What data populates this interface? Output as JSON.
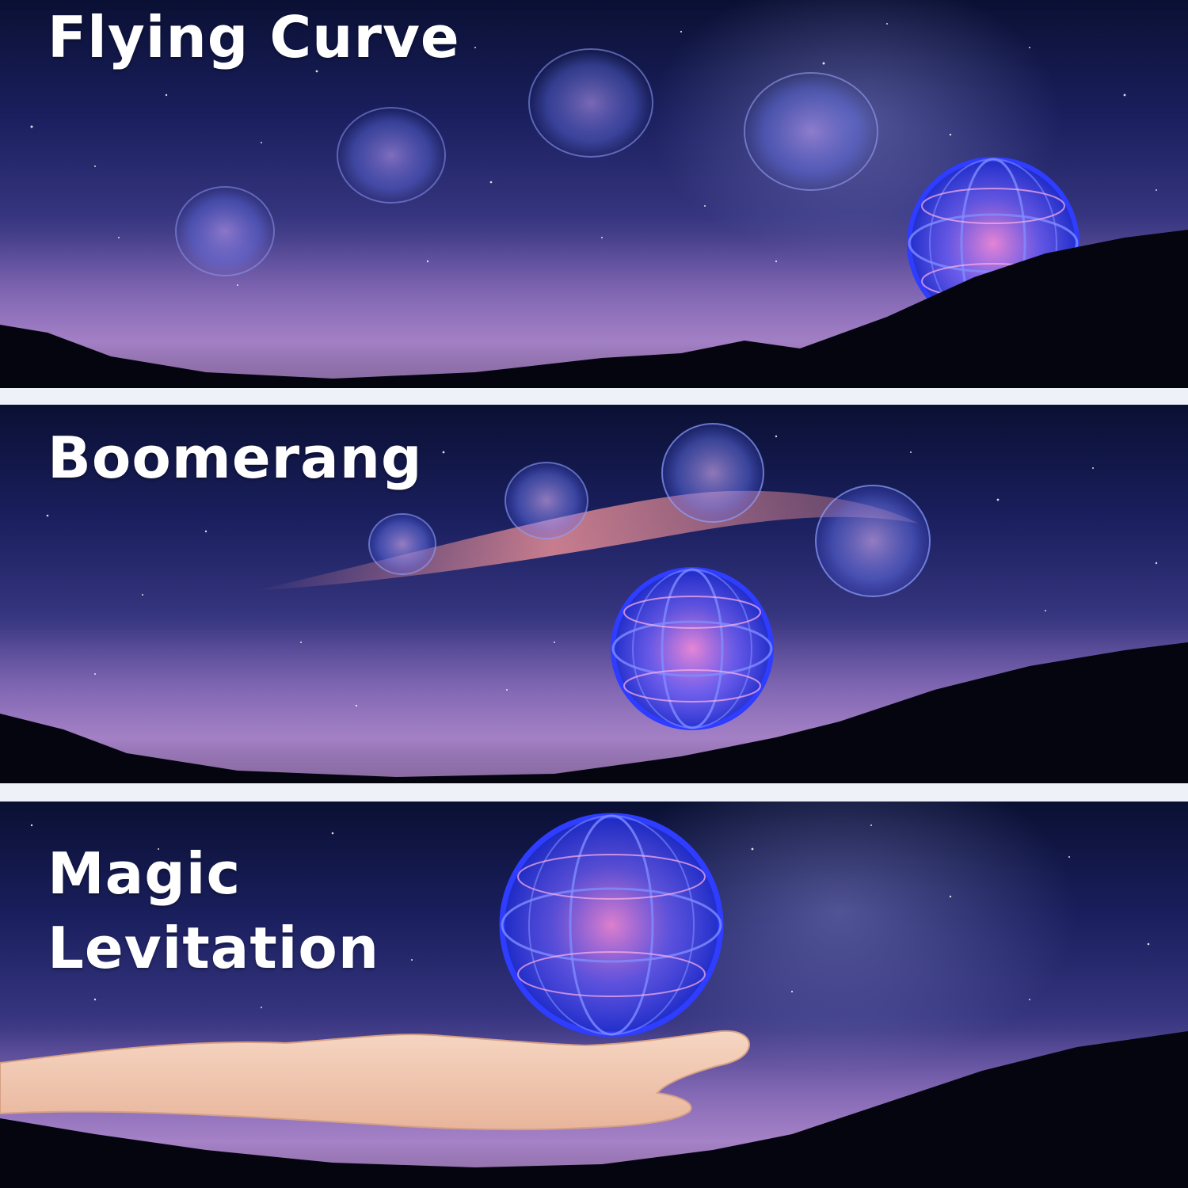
{
  "panels": [
    {
      "id": "flying-curve",
      "title": "Flying Curve"
    },
    {
      "id": "boomerang",
      "title": "Boomerang"
    },
    {
      "id": "magic-levitation",
      "title_line1": "Magic",
      "title_line2": "Levitation"
    }
  ],
  "colors": {
    "sky_top": "#0a1033",
    "sky_mid": "#35347e",
    "horizon_glow": "#8a6fb6",
    "mountains": "#050510",
    "orb_blue": "#3a4bff",
    "orb_pink": "#ff7ad0",
    "streak": "#ff9a9a",
    "separator": "#eef1f7"
  }
}
